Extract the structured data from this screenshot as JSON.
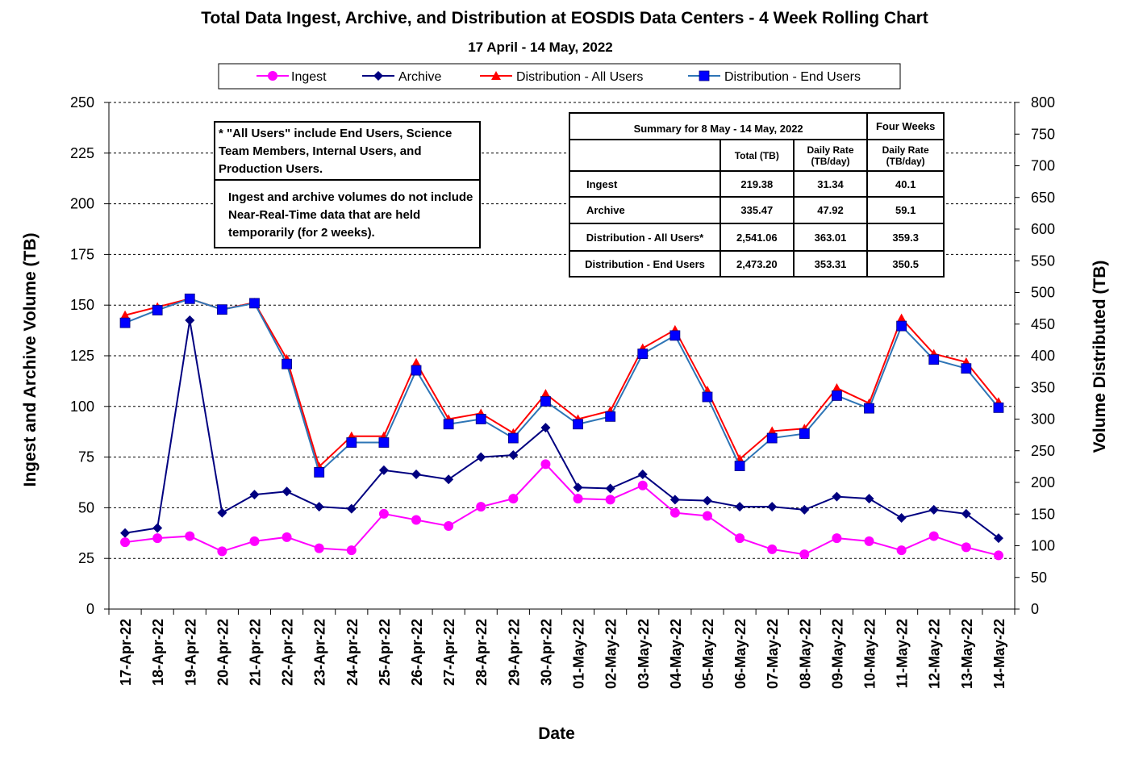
{
  "title": "Total Data Ingest, Archive, and  Distribution at EOSDIS Data Centers - 4 Week Rolling Chart",
  "subtitle": "17  April   -  14  May,  2022",
  "notes": {
    "all_users": "* \"All Users\" include End Users, Science Team Members,  Internal Users, and Production Users.",
    "nrt": "Ingest and archive volumes do not include Near-Real-Time data that are held temporarily (for 2 weeks)."
  },
  "summary": {
    "header": "Summary  for  8  May   -  14  May,  2022",
    "four_weeks": "Four Weeks",
    "col_total": "Total (TB)",
    "col_daily": "Daily Rate (TB/day)",
    "col_daily4": "Daily Rate (TB/day)",
    "rows": [
      {
        "label": "Ingest",
        "total": "219.38",
        "daily": "31.34",
        "four": "40.1"
      },
      {
        "label": "Archive",
        "total": "335.47",
        "daily": "47.92",
        "four": "59.1"
      },
      {
        "label": "Distribution - All Users*",
        "total": "2,541.06",
        "daily": "363.01",
        "four": "359.3"
      },
      {
        "label": "Distribution - End Users",
        "total": "2,473.20",
        "daily": "353.31",
        "four": "350.5"
      }
    ]
  },
  "chart_data": {
    "type": "line",
    "xlabel": "Date",
    "ylabel": "Ingest and Archive Volume (TB)",
    "y2label": "Volume Distributed (TB)",
    "ylim": [
      0,
      250
    ],
    "y2lim": [
      0,
      800
    ],
    "yticks": [
      "0",
      "25",
      "50",
      "75",
      "100",
      "125",
      "150",
      "175",
      "200",
      "225",
      "250"
    ],
    "y2ticks": [
      "0",
      "50",
      "100",
      "150",
      "200",
      "250",
      "300",
      "350",
      "400",
      "450",
      "500",
      "550",
      "600",
      "650",
      "700",
      "750",
      "800"
    ],
    "grid": "horizontal dashed",
    "legend_position": "top",
    "categories": [
      "17-Apr-22",
      "18-Apr-22",
      "19-Apr-22",
      "20-Apr-22",
      "21-Apr-22",
      "22-Apr-22",
      "23-Apr-22",
      "24-Apr-22",
      "25-Apr-22",
      "26-Apr-22",
      "27-Apr-22",
      "28-Apr-22",
      "29-Apr-22",
      "30-Apr-22",
      "01-May-22",
      "02-May-22",
      "03-May-22",
      "04-May-22",
      "05-May-22",
      "06-May-22",
      "07-May-22",
      "08-May-22",
      "09-May-22",
      "10-May-22",
      "11-May-22",
      "12-May-22",
      "13-May-22",
      "14-May-22"
    ],
    "series": [
      {
        "name": "Ingest",
        "axis": "left",
        "color": "#ff00ff",
        "marker": "circle",
        "values": [
          33,
          35,
          36,
          28.5,
          33.5,
          35.5,
          30,
          29,
          47,
          44,
          41,
          50.5,
          54.5,
          71.5,
          54.5,
          54,
          61,
          47.5,
          46,
          35,
          29.5,
          27,
          35,
          33.5,
          29,
          36,
          30.5,
          26.5
        ]
      },
      {
        "name": "Archive",
        "axis": "left",
        "color": "#000080",
        "marker": "diamond",
        "values": [
          37.5,
          40,
          142.5,
          47.5,
          56.5,
          58,
          50.5,
          49.5,
          68.5,
          66.5,
          64,
          75,
          76,
          89.5,
          60,
          59.5,
          66.5,
          54,
          53.5,
          50.5,
          50.5,
          49,
          55.5,
          54.5,
          45,
          49,
          47,
          35
        ]
      },
      {
        "name": "Distribution - All Users",
        "axis": "right",
        "color": "#ff0000",
        "marker": "triangle",
        "values": [
          464,
          477,
          490,
          473,
          484,
          395,
          225,
          273,
          273,
          389,
          300,
          309,
          278,
          340,
          300,
          313,
          412,
          441,
          345,
          237,
          281,
          285,
          349,
          325,
          459,
          403,
          390,
          327
        ]
      },
      {
        "name": "Distribution - End Users",
        "axis": "right",
        "color": "#0000ff",
        "marker": "square",
        "line_color": "#2e75b6",
        "values": [
          452,
          472,
          490,
          473,
          483,
          387,
          216,
          263,
          263,
          377,
          292,
          300,
          270,
          328,
          292,
          304,
          403,
          432,
          335,
          226,
          270,
          277,
          337,
          317,
          447,
          394,
          380,
          318
        ]
      }
    ]
  }
}
